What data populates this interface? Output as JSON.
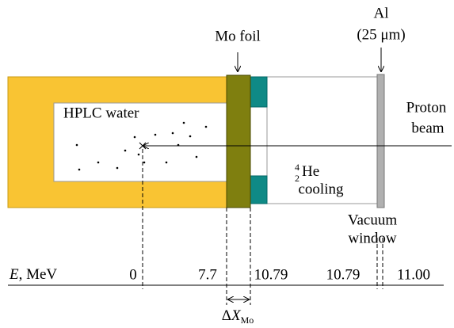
{
  "labels": {
    "mo_foil": "Mo foil",
    "al": "Al",
    "al_thickness": "(25 μm)",
    "proton": "Proton",
    "beam": "beam",
    "hplc_water": "HPLC water",
    "he_mass": "4",
    "he_charge": "2",
    "he_symbol": "He",
    "cooling": "cooling",
    "vacuum": "Vacuum",
    "window": "window",
    "energy_symbol": "E",
    "energy_unit": ", MeV",
    "delta_symbol": "Δ",
    "delta_x": "X",
    "delta_sub": "Mo"
  },
  "energy_marks": [
    "0",
    "7.7",
    "10.79",
    "10.79",
    "11.00"
  ]
}
